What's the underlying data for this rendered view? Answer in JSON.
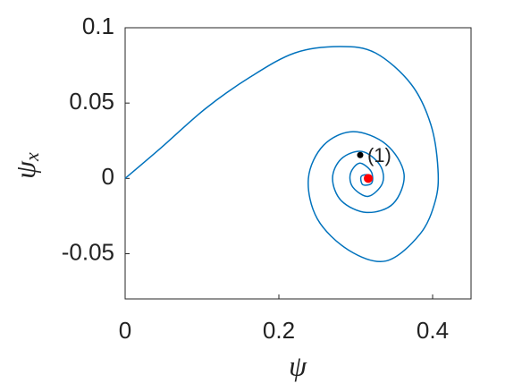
{
  "chart_data": {
    "type": "line",
    "xlabel": "ψ",
    "ylabel": "ψ",
    "ylabel_subscript": "x",
    "xlim": [
      0,
      0.45
    ],
    "ylim": [
      -0.08,
      0.1
    ],
    "xticks": [
      0,
      0.2,
      0.4
    ],
    "yticks": [
      -0.05,
      0,
      0.05,
      0.1
    ],
    "grid": false,
    "series": [
      {
        "color": "#0072bd",
        "x": [
          0,
          0.0465,
          0.1047,
          0.1628,
          0.2209,
          0.2791,
          0.3256,
          0.3721,
          0.3977,
          0.407,
          0.4035,
          0.3837,
          0.3395,
          0.2907,
          0.25,
          0.2384,
          0.2581,
          0.2965,
          0.3395,
          0.3628,
          0.3488,
          0.314,
          0.2814,
          0.2698,
          0.2814,
          0.3081,
          0.3314,
          0.3349,
          0.3163,
          0.2965,
          0.293,
          0.3047,
          0.3198,
          0.3209,
          0.3093,
          0.307,
          0.3163,
          0.3174
        ],
        "values": [
          0,
          0.0202,
          0.0464,
          0.0673,
          0.0833,
          0.0875,
          0.0833,
          0.0625,
          0.0357,
          0.006,
          -0.0149,
          -0.0369,
          -0.0548,
          -0.0476,
          -0.0268,
          0,
          0.022,
          0.031,
          0.0226,
          0.003,
          -0.0167,
          -0.0226,
          -0.0149,
          0,
          0.0131,
          0.0179,
          0.0089,
          -0.003,
          -0.0119,
          -0.006,
          0.003,
          0.0101,
          0.0048,
          -0.003,
          -0.0042,
          0.0012,
          0.0024,
          -0.0006
        ]
      }
    ],
    "markers": [
      {
        "x": 0.3058,
        "y": 0.0155,
        "color": "#000000",
        "label": "(1)"
      },
      {
        "x": 0.3163,
        "y": 0.0,
        "color": "#ff0000"
      }
    ]
  }
}
